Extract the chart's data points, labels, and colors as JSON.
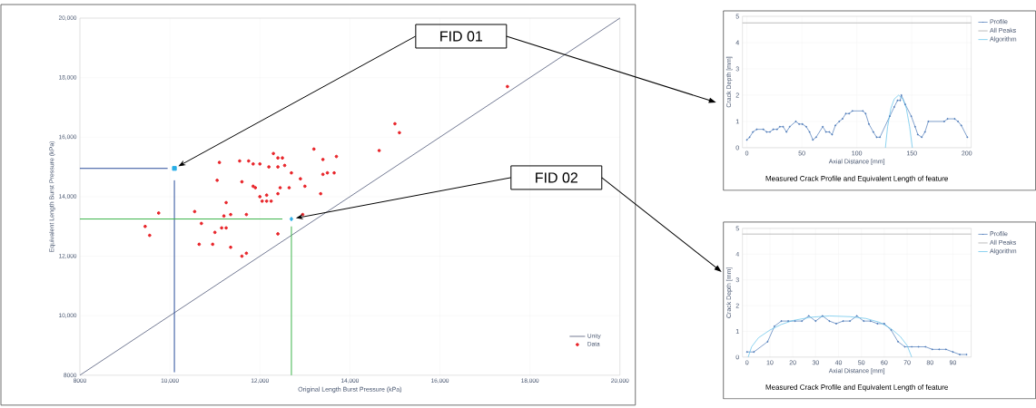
{
  "chart_data": [
    {
      "type": "scatter",
      "xlabel": "Original Length Burst Pressure (kPa)",
      "ylabel": "Equivalent Length Burst Pressure (kPa)",
      "xlim": [
        8000,
        20000
      ],
      "ylim": [
        8000,
        20000
      ],
      "xticks": [
        8000,
        {
          "value": 10000,
          "label": "10,000"
        },
        {
          "value": 12000,
          "label": "12,000"
        },
        {
          "value": 14000,
          "label": "14,000"
        },
        {
          "value": 16000,
          "label": "16,000"
        },
        {
          "value": 18000,
          "label": "18,000"
        },
        {
          "value": 20000,
          "label": "20,000"
        }
      ],
      "yticks": [
        8000,
        {
          "value": 10000,
          "label": "10,000"
        },
        {
          "value": 12000,
          "label": "12,000"
        },
        {
          "value": 14000,
          "label": "14,000"
        },
        {
          "value": 16000,
          "label": "16,000"
        },
        {
          "value": 18000,
          "label": "18,000"
        },
        {
          "value": 20000,
          "label": "20,000"
        }
      ],
      "grid": true,
      "legend": "bottom right",
      "annotations": [
        "FID 01",
        "FID 02"
      ],
      "series": [
        {
          "name": "Unity",
          "type": "line",
          "color": "#737a94",
          "marker": "none",
          "x": [
            8000,
            20000
          ],
          "values": [
            8000,
            20000
          ]
        },
        {
          "name": "Data",
          "type": "scatter",
          "color": "#e8262b",
          "marker": "circle",
          "x": [
            9450,
            9550,
            9750,
            10550,
            10700,
            10650,
            10950,
            11000,
            11050,
            11100,
            11150,
            11250,
            11200,
            11250,
            11350,
            11350,
            11600,
            11700,
            11700,
            11550,
            11600,
            11750,
            11850,
            11850,
            11900,
            12000,
            12000,
            12050,
            12150,
            12150,
            12200,
            12250,
            12300,
            12400,
            12400,
            12400,
            12450,
            12500,
            12550,
            12650,
            12700,
            12400,
            12900,
            13000,
            12950,
            13200,
            13350,
            13400,
            13400,
            13500,
            13650,
            13700,
            14650,
            15000,
            15100,
            17500
          ],
          "values": [
            13000,
            12700,
            13450,
            13500,
            13100,
            12400,
            12400,
            12800,
            14550,
            15150,
            12950,
            13800,
            13350,
            12950,
            13400,
            12300,
            12000,
            12100,
            13400,
            15200,
            14500,
            15200,
            15100,
            14350,
            14300,
            15100,
            14000,
            13850,
            14050,
            13850,
            15000,
            13850,
            15450,
            15300,
            15000,
            14100,
            14300,
            15300,
            15050,
            14300,
            14800,
            12750,
            14600,
            14350,
            13400,
            15600,
            14100,
            15250,
            14750,
            14800,
            14800,
            15350,
            15550,
            16450,
            16150,
            17700
          ]
        },
        {
          "type": "scatter",
          "color": "#29aee6",
          "marker": "square",
          "x": [
            10100
          ],
          "values": [
            14950
          ]
        },
        {
          "type": "scatter",
          "color": "#29aee6",
          "marker": "diamond",
          "x": [
            12700
          ],
          "values": [
            13250
          ]
        },
        {
          "type": "line",
          "color": "#2a4d9c",
          "marker": "none",
          "x": [
            8000,
            9950
          ],
          "values": [
            14950,
            14950
          ]
        },
        {
          "type": "line",
          "color": "#2a4d9c",
          "marker": "none",
          "x": [
            10100,
            10100
          ],
          "values": [
            14550,
            8100
          ]
        },
        {
          "type": "line",
          "color": "#3cb44a",
          "marker": "none",
          "x": [
            8000,
            12500
          ],
          "values": [
            13250,
            13250
          ]
        },
        {
          "type": "line",
          "color": "#3cb44a",
          "marker": "none",
          "x": [
            12700,
            12700
          ],
          "values": [
            13000,
            8000
          ]
        }
      ]
    },
    {
      "type": "line",
      "title": "Measured Crack Profile and Equivalent Length of feature",
      "xlabel": "Axial Distance [mm]",
      "ylabel": "Crack Depth [mm]",
      "xlim": [
        -4,
        204
      ],
      "ylim": [
        0,
        5
      ],
      "xticks": [
        0,
        50,
        100,
        150,
        200
      ],
      "yticks": [
        0,
        1,
        2,
        3,
        4,
        5
      ],
      "grid": true,
      "legend": "top right",
      "series": [
        {
          "name": "Profile",
          "color": "#4a78b8",
          "marker": "circle",
          "x": [
            0,
            2.5,
            5.5,
            9,
            15,
            18,
            21,
            24,
            27.5,
            30,
            33,
            36,
            39,
            44.5,
            47.5,
            50.5,
            54,
            57,
            60,
            63,
            69,
            72,
            75,
            77.5,
            80.5,
            84,
            87,
            90,
            93,
            96,
            105.5,
            108,
            111,
            115,
            118,
            121,
            130,
            134,
            137,
            139.5,
            140.5,
            144,
            149.5,
            153,
            155.5,
            159,
            162,
            165,
            179.5,
            182.5,
            189,
            192,
            195,
            200.5
          ],
          "values": [
            0.3,
            0.4,
            0.6,
            0.7,
            0.7,
            0.6,
            0.6,
            0.7,
            0.7,
            0.8,
            0.8,
            0.6,
            0.8,
            1.0,
            0.9,
            0.9,
            0.8,
            0.6,
            0.3,
            0.4,
            0.8,
            0.6,
            0.6,
            0.5,
            0.85,
            1.0,
            1.1,
            1.3,
            1.3,
            1.4,
            1.4,
            1.3,
            0.9,
            0.6,
            0.4,
            0.4,
            1.2,
            1.55,
            1.8,
            1.8,
            2.0,
            1.65,
            1.2,
            0.8,
            0.5,
            0.4,
            0.6,
            1.0,
            1.0,
            1.1,
            1.1,
            1.0,
            0.85,
            0.4
          ]
        },
        {
          "name": "All Peaks",
          "color": "#a0a0a0",
          "marker": "none",
          "x": [
            -4,
            204
          ],
          "values": [
            4.75,
            4.75
          ]
        },
        {
          "name": "Algorithm",
          "color": "#5bc0ea",
          "marker": "none",
          "x": [
            126,
            128,
            131,
            134,
            138,
            142,
            145,
            148,
            150.5
          ],
          "values": [
            0,
            0.8,
            1.5,
            1.85,
            2.0,
            1.85,
            1.5,
            0.8,
            0
          ]
        }
      ]
    },
    {
      "type": "line",
      "title": "Measured Crack Profile and Equivalent Length of feature",
      "xlabel": "Axial Distance [mm]",
      "ylabel": "Crack Depth [mm]",
      "xlim": [
        -2,
        98
      ],
      "ylim": [
        0,
        5
      ],
      "xticks": [
        0,
        10,
        20,
        30,
        40,
        50,
        60,
        70,
        80,
        90
      ],
      "yticks": [
        0,
        1,
        2,
        3,
        4,
        5
      ],
      "grid": true,
      "legend": "top right",
      "series": [
        {
          "name": "Profile",
          "color": "#4a78b8",
          "marker": "circle",
          "x": [
            0,
            3,
            9,
            12,
            15,
            18,
            21,
            24,
            27,
            30,
            33,
            36,
            39,
            42,
            45,
            48,
            51,
            54,
            57,
            60,
            63,
            66,
            69,
            72,
            75,
            78,
            81,
            84,
            87,
            90,
            93,
            96
          ],
          "values": [
            0.2,
            0.2,
            0.6,
            1.2,
            1.4,
            1.4,
            1.4,
            1.4,
            1.6,
            1.4,
            1.6,
            1.4,
            1.3,
            1.4,
            1.4,
            1.6,
            1.4,
            1.4,
            1.3,
            1.3,
            1.05,
            0.6,
            0.4,
            0.4,
            0.4,
            0.4,
            0.3,
            0.3,
            0.3,
            0.2,
            0.1,
            0.1
          ]
        },
        {
          "name": "All Peaks",
          "color": "#a0a0a0",
          "marker": "none",
          "x": [
            -2,
            98
          ],
          "values": [
            4.78,
            4.78
          ]
        },
        {
          "name": "Algorithm",
          "color": "#5bc0ea",
          "marker": "none",
          "x": [
            0.5,
            2,
            5,
            10,
            15,
            20,
            28,
            36,
            45,
            52,
            58,
            63,
            67,
            70,
            72
          ],
          "values": [
            0,
            0.4,
            0.75,
            1.05,
            1.27,
            1.42,
            1.55,
            1.6,
            1.57,
            1.5,
            1.35,
            1.1,
            0.8,
            0.45,
            0
          ]
        }
      ]
    }
  ]
}
